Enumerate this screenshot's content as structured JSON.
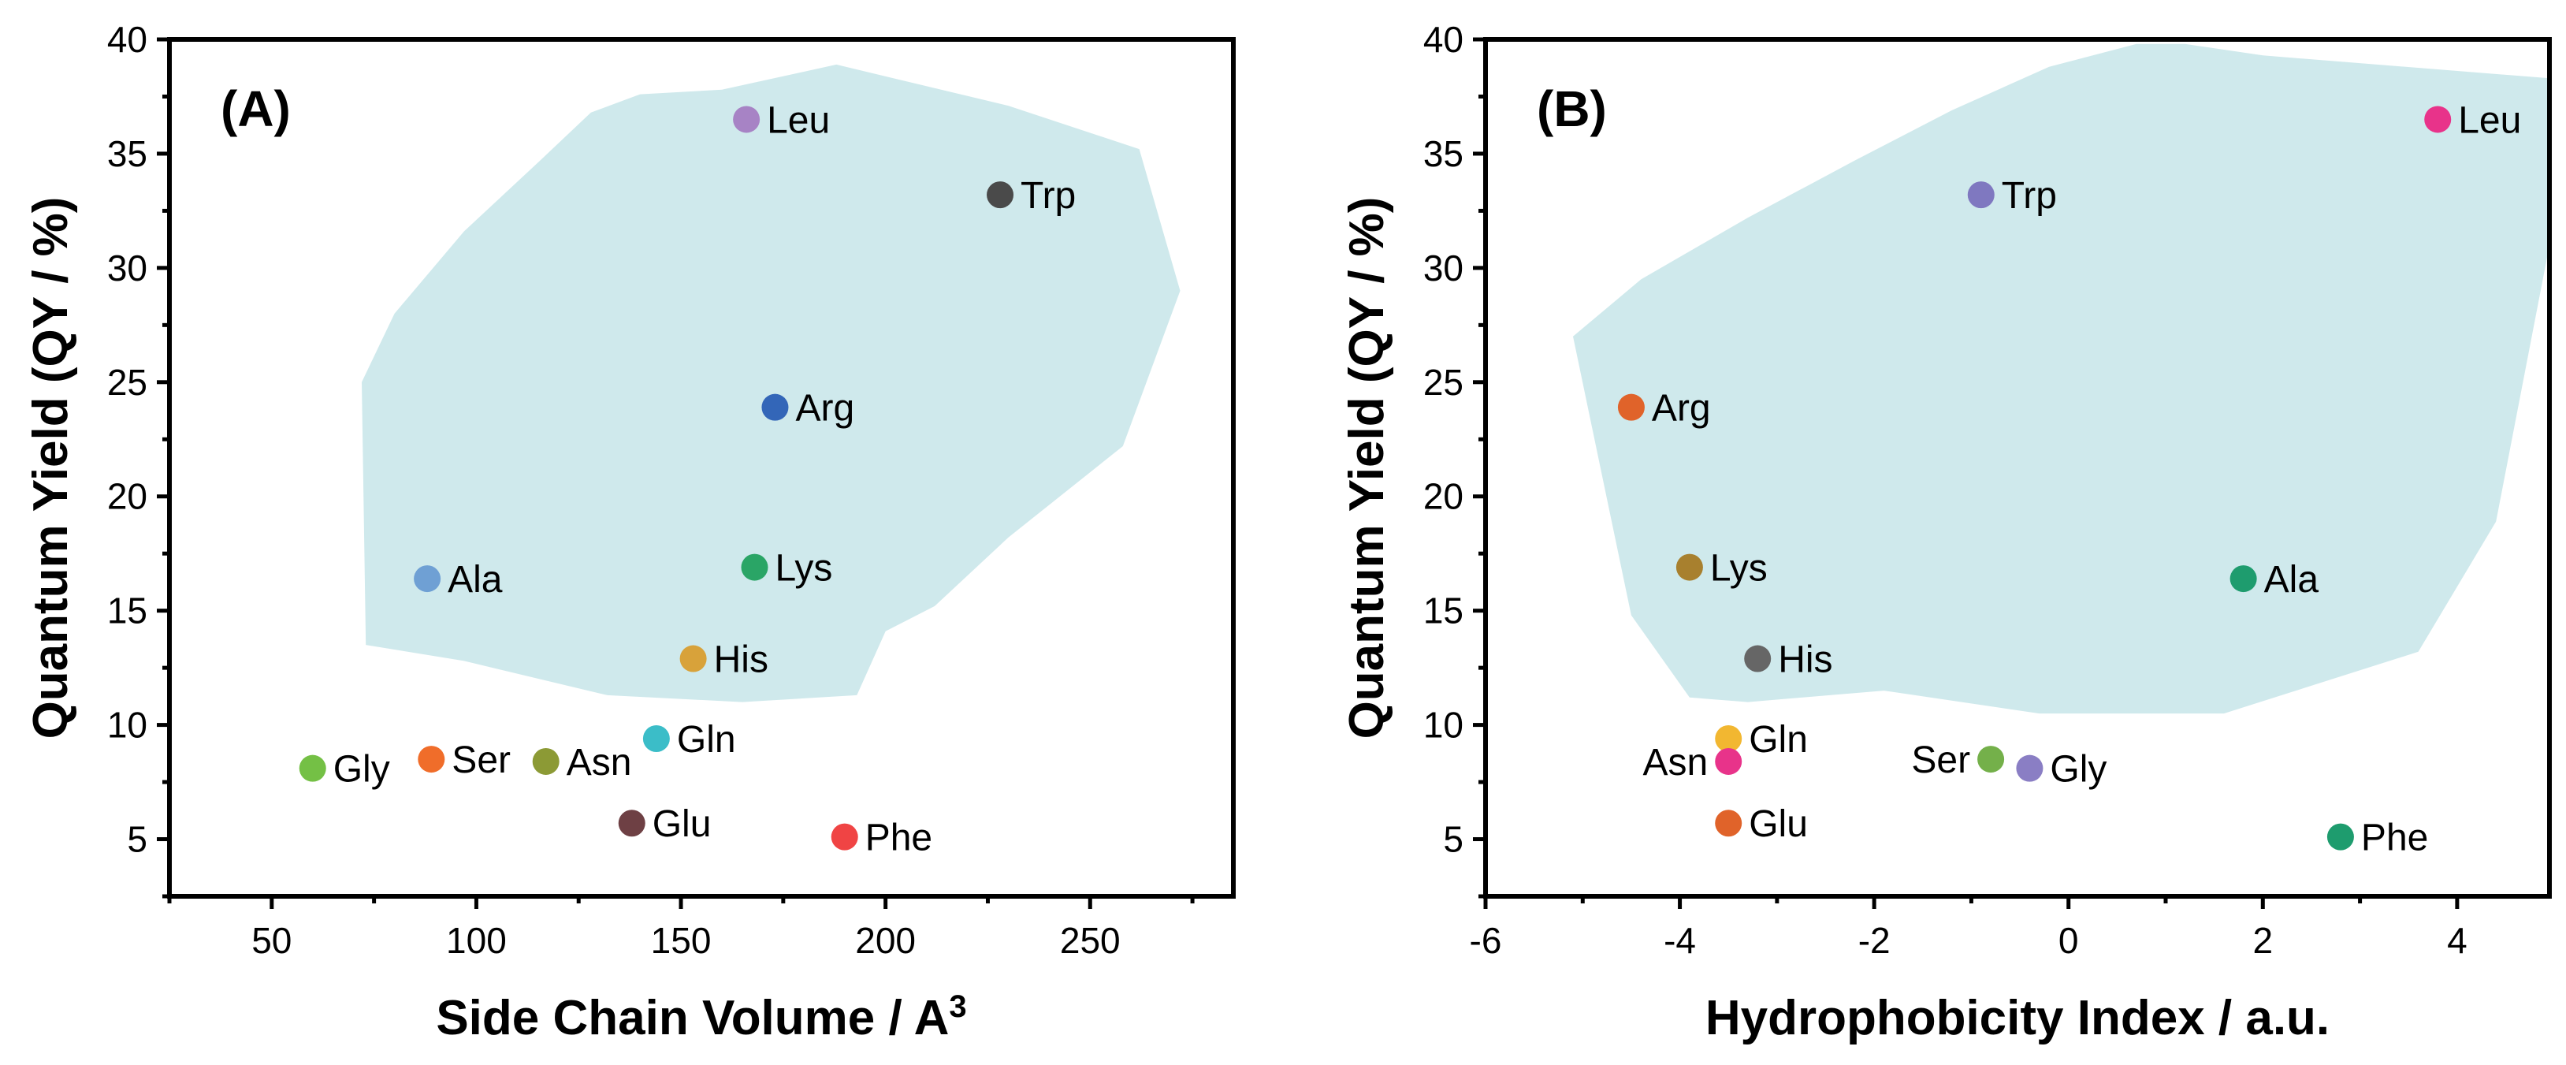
{
  "chart_data": [
    {
      "type": "scatter",
      "panel_label": "(A)",
      "xlabel": "Side Chain Volume / A",
      "xlabel_sup": "3",
      "ylabel": "Quantum Yield (QY / %)",
      "xlim": [
        25,
        285
      ],
      "ylim": [
        2.5,
        40
      ],
      "xticks": [
        50,
        100,
        150,
        200,
        250
      ],
      "yticks": [
        5,
        10,
        15,
        20,
        25,
        30,
        35,
        40
      ],
      "grid": false,
      "region_color": "#cfe9ec",
      "region": [
        [
          72,
          25
        ],
        [
          80,
          28
        ],
        [
          97,
          31.6
        ],
        [
          115,
          34.6
        ],
        [
          128,
          36.8
        ],
        [
          140,
          37.6
        ],
        [
          160,
          37.8
        ],
        [
          188,
          38.9
        ],
        [
          230,
          37.1
        ],
        [
          262,
          35.2
        ],
        [
          272,
          29
        ],
        [
          258,
          22.2
        ],
        [
          230,
          18.2
        ],
        [
          212,
          15.2
        ],
        [
          200,
          14.1
        ],
        [
          193,
          11.3
        ],
        [
          165,
          11
        ],
        [
          132,
          11.3
        ],
        [
          97,
          12.8
        ],
        [
          73,
          13.5
        ],
        [
          72,
          25
        ]
      ],
      "points": [
        {
          "label": "Leu",
          "x": 166,
          "y": 36.5,
          "color": "#a783c5",
          "label_side": "right"
        },
        {
          "label": "Trp",
          "x": 228,
          "y": 33.2,
          "color": "#4a4a4a",
          "label_side": "right"
        },
        {
          "label": "Arg",
          "x": 173,
          "y": 23.9,
          "color": "#3366b8",
          "label_side": "right"
        },
        {
          "label": "Ala",
          "x": 88,
          "y": 16.4,
          "color": "#6fa0d4",
          "label_side": "right"
        },
        {
          "label": "Lys",
          "x": 168,
          "y": 16.9,
          "color": "#2aa566",
          "label_side": "right"
        },
        {
          "label": "His",
          "x": 153,
          "y": 12.9,
          "color": "#d8a23a",
          "label_side": "right"
        },
        {
          "label": "Gln",
          "x": 144,
          "y": 9.4,
          "color": "#3bbdc8",
          "label_side": "right"
        },
        {
          "label": "Gly",
          "x": 60,
          "y": 8.1,
          "color": "#74c045",
          "label_side": "right"
        },
        {
          "label": "Ser",
          "x": 89,
          "y": 8.5,
          "color": "#f06d2a",
          "label_side": "right"
        },
        {
          "label": "Asn",
          "x": 117,
          "y": 8.4,
          "color": "#8c9a35",
          "label_side": "right"
        },
        {
          "label": "Glu",
          "x": 138,
          "y": 5.7,
          "color": "#6e4044",
          "label_side": "right"
        },
        {
          "label": "Phe",
          "x": 190,
          "y": 5.1,
          "color": "#f04444",
          "label_side": "right"
        }
      ]
    },
    {
      "type": "scatter",
      "panel_label": "(B)",
      "xlabel": "Hydrophobicity Index / a.u.",
      "xlabel_sup": "",
      "ylabel": "Quantum Yield (QY / %)",
      "xlim": [
        -6,
        4.95
      ],
      "ylim": [
        2.5,
        40
      ],
      "xticks": [
        -6,
        -4,
        -2,
        0,
        2,
        4
      ],
      "yticks": [
        5,
        10,
        15,
        20,
        25,
        30,
        35,
        40
      ],
      "grid": false,
      "region_color": "#cfe9ec",
      "region": [
        [
          -5.1,
          27
        ],
        [
          -4.4,
          29.5
        ],
        [
          -3.3,
          32.2
        ],
        [
          -2.2,
          34.7
        ],
        [
          -1.2,
          36.9
        ],
        [
          -0.2,
          38.8
        ],
        [
          0.7,
          39.8
        ],
        [
          1.2,
          39.8
        ],
        [
          2.0,
          39.3
        ],
        [
          4.95,
          38.3
        ],
        [
          4.95,
          31
        ],
        [
          4.4,
          18.9
        ],
        [
          3.6,
          13.2
        ],
        [
          1.6,
          10.5
        ],
        [
          -0.3,
          10.5
        ],
        [
          -1.9,
          11.5
        ],
        [
          -3.3,
          11
        ],
        [
          -3.9,
          11.2
        ],
        [
          -4.5,
          14.8
        ],
        [
          -5.1,
          27
        ]
      ],
      "points": [
        {
          "label": "Leu",
          "x": 3.8,
          "y": 36.5,
          "color": "#e8338a",
          "label_side": "right"
        },
        {
          "label": "Trp",
          "x": -0.9,
          "y": 33.2,
          "color": "#7f78c0",
          "label_side": "right"
        },
        {
          "label": "Arg",
          "x": -4.5,
          "y": 23.9,
          "color": "#e0632a",
          "label_side": "right"
        },
        {
          "label": "Lys",
          "x": -3.9,
          "y": 16.9,
          "color": "#a8802e",
          "label_side": "right"
        },
        {
          "label": "Ala",
          "x": 1.8,
          "y": 16.4,
          "color": "#1e9c6e",
          "label_side": "right"
        },
        {
          "label": "His",
          "x": -3.2,
          "y": 12.9,
          "color": "#666666",
          "label_side": "right"
        },
        {
          "label": "Gln",
          "x": -3.5,
          "y": 9.4,
          "color": "#f2b731",
          "label_side": "right"
        },
        {
          "label": "Asn",
          "x": -3.5,
          "y": 8.4,
          "color": "#e8338a",
          "label_side": "left"
        },
        {
          "label": "Glu",
          "x": -3.5,
          "y": 5.7,
          "color": "#e0632a",
          "label_side": "right"
        },
        {
          "label": "Ser",
          "x": -0.8,
          "y": 8.5,
          "color": "#74b04a",
          "label_side": "left"
        },
        {
          "label": "Gly",
          "x": -0.4,
          "y": 8.1,
          "color": "#8a7ec4",
          "label_side": "right"
        },
        {
          "label": "Phe",
          "x": 2.8,
          "y": 5.1,
          "color": "#1e9c6e",
          "label_side": "right"
        }
      ]
    }
  ]
}
